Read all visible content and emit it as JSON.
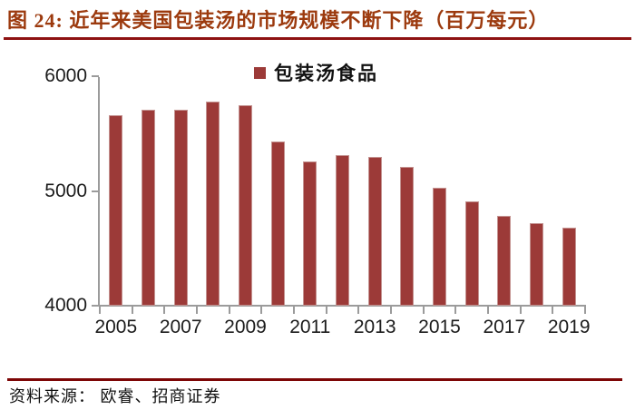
{
  "title": {
    "text": "图 24: 近年来美国包装汤的市场规模不断下降（百万每元）"
  },
  "legend": {
    "label": "包装汤食品",
    "marker_color": "#9c3a38"
  },
  "source": {
    "text": "资料来源： 欧睿、招商证券"
  },
  "colors": {
    "title_text": "#9c3a0e",
    "title_rule": "#8e1212",
    "bottom_rule": "#7d0606",
    "bar": "#9c3a38",
    "axis": "#9b9b9b"
  },
  "chart_data": {
    "type": "bar",
    "title": "图 24: 近年来美国包装汤的市场规模不断下降（百万每元）",
    "categories": [
      "2005",
      "2006",
      "2007",
      "2008",
      "2009",
      "2010",
      "2011",
      "2012",
      "2013",
      "2014",
      "2015",
      "2016",
      "2017",
      "2018",
      "2019"
    ],
    "series": [
      {
        "name": "包装汤食品",
        "values": [
          5660,
          5710,
          5710,
          5780,
          5750,
          5430,
          5260,
          5310,
          5300,
          5210,
          5030,
          4910,
          4780,
          4720,
          4680
        ]
      }
    ],
    "xlabel": "",
    "ylabel": "",
    "ylim": [
      4000,
      6000
    ],
    "yticks": [
      4000,
      5000,
      6000
    ],
    "xtick_labels_shown": [
      "2005",
      "2007",
      "2009",
      "2011",
      "2013",
      "2015",
      "2017",
      "2019"
    ],
    "grid": false,
    "legend_position": "top-center"
  }
}
